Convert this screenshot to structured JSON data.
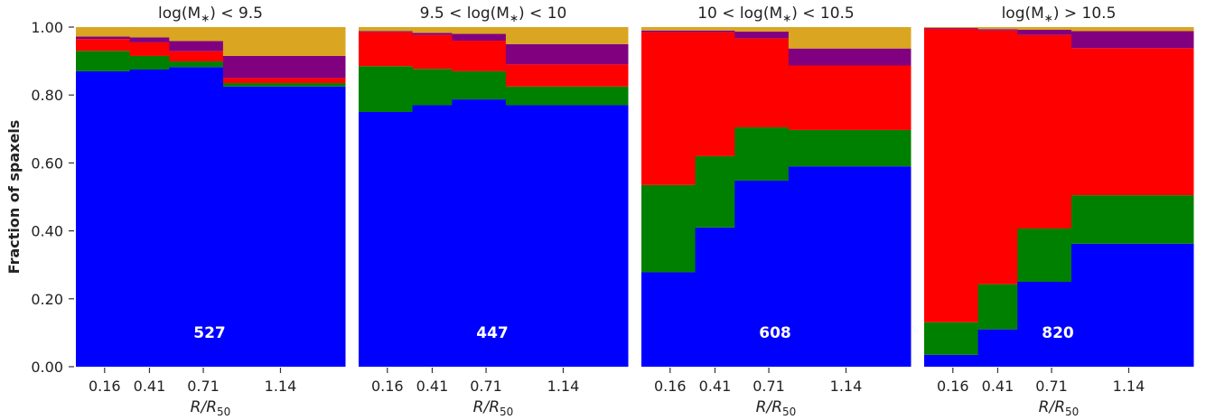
{
  "chart_data": {
    "type": "bar",
    "stacked": true,
    "variable_width": true,
    "ylabel": "Fraction of spaxels",
    "ylim": [
      0,
      1
    ],
    "yticks": [
      "0.00",
      "0.20",
      "0.40",
      "0.60",
      "0.80",
      "1.00"
    ],
    "xlabel_base": "R/R",
    "xlabel_sub": "50",
    "bin_edges": [
      0,
      0.3,
      0.52,
      0.82,
      1.5
    ],
    "categories": [
      "0.16",
      "0.41",
      "0.71",
      "1.14"
    ],
    "series_colors": [
      "#0000ff",
      "#008000",
      "#ff0000",
      "#800080",
      "#daa520"
    ],
    "panels": [
      {
        "title_parts": [
          "log(M",
          "∗",
          ") < 9.5"
        ],
        "count": "527",
        "series": [
          {
            "values": [
              0.87,
              0.875,
              0.882,
              0.825
            ]
          },
          {
            "values": [
              0.06,
              0.04,
              0.017,
              0.01
            ]
          },
          {
            "values": [
              0.035,
              0.04,
              0.03,
              0.015
            ]
          },
          {
            "values": [
              0.007,
              0.015,
              0.03,
              0.065
            ]
          },
          {
            "values": [
              0.028,
              0.03,
              0.041,
              0.085
            ]
          }
        ]
      },
      {
        "title_parts": [
          "9.5 < log(M",
          "∗",
          ") < 10"
        ],
        "count": "447",
        "series": [
          {
            "values": [
              0.75,
              0.77,
              0.787,
              0.77
            ]
          },
          {
            "values": [
              0.135,
              0.107,
              0.083,
              0.055
            ]
          },
          {
            "values": [
              0.1,
              0.1,
              0.09,
              0.065
            ]
          },
          {
            "values": [
              0.003,
              0.006,
              0.02,
              0.06
            ]
          },
          {
            "values": [
              0.012,
              0.017,
              0.02,
              0.05
            ]
          }
        ]
      },
      {
        "title_parts": [
          "10 < log(M",
          "∗",
          ") < 10.5"
        ],
        "count": "608",
        "series": [
          {
            "values": [
              0.278,
              0.41,
              0.548,
              0.59
            ]
          },
          {
            "values": [
              0.257,
              0.21,
              0.157,
              0.107
            ]
          },
          {
            "values": [
              0.45,
              0.365,
              0.262,
              0.19
            ]
          },
          {
            "values": [
              0.005,
              0.005,
              0.02,
              0.05
            ]
          },
          {
            "values": [
              0.01,
              0.01,
              0.013,
              0.063
            ]
          }
        ]
      },
      {
        "title_parts": [
          "log(M",
          "∗",
          ") > 10.5"
        ],
        "count": "820",
        "series": [
          {
            "values": [
              0.035,
              0.11,
              0.25,
              0.362
            ]
          },
          {
            "values": [
              0.096,
              0.133,
              0.157,
              0.143
            ]
          },
          {
            "values": [
              0.864,
              0.747,
              0.57,
              0.433
            ]
          },
          {
            "values": [
              0.003,
              0.004,
              0.015,
              0.05
            ]
          },
          {
            "values": [
              0.002,
              0.006,
              0.008,
              0.012
            ]
          }
        ]
      }
    ]
  }
}
